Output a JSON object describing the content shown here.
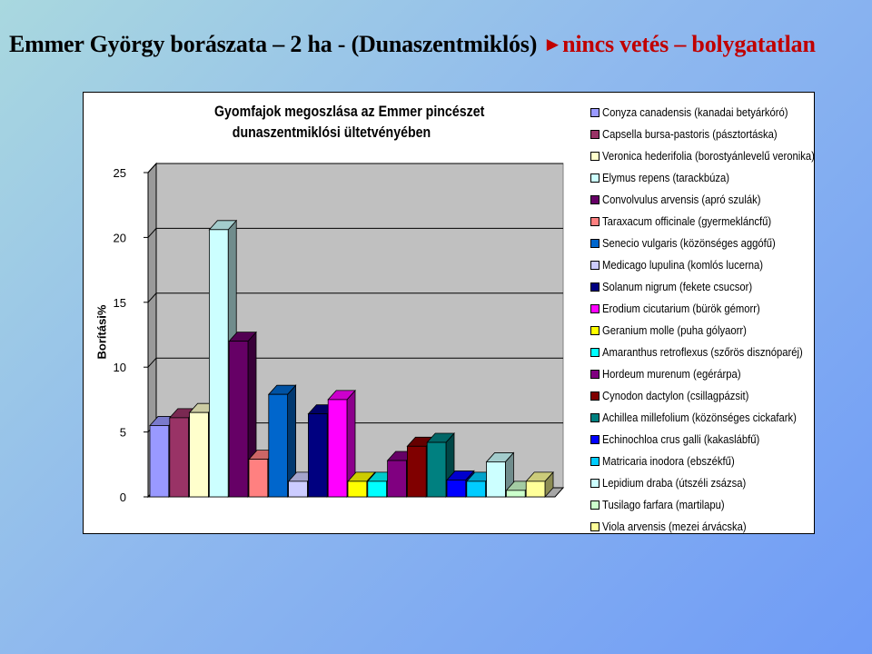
{
  "slide": {
    "title_main": "Emmer György borászata – 2 ha - (Dunaszentmiklós)",
    "title_arrow": "►",
    "title_accent": "nincs vetés – bolygatatlan"
  },
  "chart_data": {
    "type": "bar",
    "title_lines": [
      "Gyomfajok megoszlása az Emmer pincészet",
      "dunaszentmiklósi ültetvényében"
    ],
    "ylabel": "Borítási%",
    "xlabel": "",
    "ylim": [
      0,
      25
    ],
    "yticks": [
      0,
      5,
      10,
      15,
      20,
      25
    ],
    "grid": true,
    "legend_position": "right",
    "three_d": true,
    "series": [
      {
        "name": "Conyza canadensis (kanadai betyárkóró)",
        "value": 5.5,
        "color": "#9999ff"
      },
      {
        "name": "Capsella bursa-pastoris (pásztortáska)",
        "value": 6.1,
        "color": "#993366"
      },
      {
        "name": "Veronica hederifolia (borostyánlevelű veronika)",
        "value": 6.5,
        "color": "#ffffcc"
      },
      {
        "name": "Elymus repens (tarackbúza)",
        "value": 20.6,
        "color": "#ccffff"
      },
      {
        "name": "Convolvulus arvensis (apró szulák)",
        "value": 12.0,
        "color": "#660066"
      },
      {
        "name": "Taraxacum officinale (gyermekláncfű)",
        "value": 2.9,
        "color": "#ff8080"
      },
      {
        "name": "Senecio vulgaris (közönséges aggófű)",
        "value": 7.9,
        "color": "#0066cc"
      },
      {
        "name": "Medicago lupulina (komlós lucerna)",
        "value": 1.2,
        "color": "#ccccff"
      },
      {
        "name": "Solanum nigrum (fekete csucsor)",
        "value": 6.4,
        "color": "#000080"
      },
      {
        "name": "Erodium cicutarium (bürök gémorr)",
        "value": 7.5,
        "color": "#ff00ff"
      },
      {
        "name": "Geranium molle (puha gólyaorr)",
        "value": 1.2,
        "color": "#ffff00"
      },
      {
        "name": "Amaranthus retroflexus (szőrös disznóparéj)",
        "value": 1.2,
        "color": "#00ffff"
      },
      {
        "name": "Hordeum murenum (egérárpa)",
        "value": 2.8,
        "color": "#800080"
      },
      {
        "name": "Cynodon dactylon (csillagpázsit)",
        "value": 3.9,
        "color": "#800000"
      },
      {
        "name": "Achillea millefolium (közönséges cickafark)",
        "value": 4.2,
        "color": "#008080"
      },
      {
        "name": "Echinochloa crus galli (kakaslábfű)",
        "value": 1.3,
        "color": "#0000ff"
      },
      {
        "name": "Matricaria inodora (ebszékfű)",
        "value": 1.2,
        "color": "#00ccff"
      },
      {
        "name": "Lepidium draba (útszéli zsázsa)",
        "value": 2.7,
        "color": "#ccffff"
      },
      {
        "name": "Tusilago farfara (martilapu)",
        "value": 0.5,
        "color": "#ccffcc"
      },
      {
        "name": "Viola arvensis (mezei árvácska)",
        "value": 1.2,
        "color": "#ffff99"
      }
    ]
  }
}
